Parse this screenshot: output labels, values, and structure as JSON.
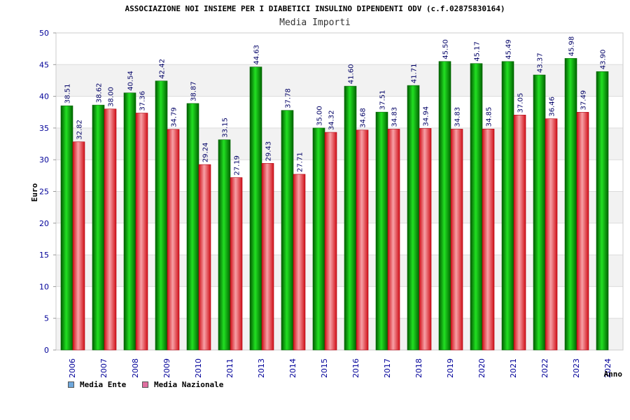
{
  "chart_data": {
    "type": "bar",
    "title": "ASSOCIAZIONE NOI INSIEME PER I DIABETICI INSULINO DIPENDENTI ODV (c.f.02875830164)",
    "subtitle": "Media Importi",
    "xlabel": "Anno",
    "ylabel": "Euro",
    "ylim": [
      0,
      50
    ],
    "yticks": [
      0,
      5,
      10,
      15,
      20,
      25,
      30,
      35,
      40,
      45,
      50
    ],
    "grid": true,
    "legend_position": "bottom-left",
    "categories": [
      "2006",
      "2007",
      "2008",
      "2009",
      "2010",
      "2011",
      "2013",
      "2014",
      "2015",
      "2016",
      "2017",
      "2018",
      "2019",
      "2020",
      "2021",
      "2022",
      "2023",
      "2024"
    ],
    "series": [
      {
        "name": "Media Ente",
        "color": "#00b300",
        "legend_color": "#6fa8dc",
        "values": [
          38.51,
          38.62,
          40.54,
          42.42,
          38.87,
          33.15,
          44.63,
          37.78,
          35.0,
          41.6,
          37.51,
          41.71,
          45.5,
          45.17,
          45.49,
          43.37,
          45.98,
          43.9
        ],
        "labels": [
          "38.51",
          "38.62",
          "40.54",
          "42.42",
          "38.87",
          "33.15",
          "44.63",
          "37.78",
          "35.00",
          "41.60",
          "37.51",
          "41.71",
          "45.50",
          "45.17",
          "45.49",
          "43.37",
          "45.98",
          "43.90"
        ]
      },
      {
        "name": "Media Nazionale",
        "color": "#e8202a",
        "legend_color": "#e06fa0",
        "values": [
          32.82,
          38.0,
          37.36,
          34.79,
          29.24,
          27.19,
          29.43,
          27.71,
          34.32,
          34.68,
          34.83,
          34.94,
          34.83,
          34.85,
          37.05,
          36.46,
          37.49,
          null
        ],
        "labels": [
          "32.82",
          "38.00",
          "37.36",
          "34.79",
          "29.24",
          "27.19",
          "29.43",
          "27.71",
          "34.32",
          "34.68",
          "34.83",
          "34.94",
          "34.83",
          "34.85",
          "37.05",
          "36.46",
          "37.49",
          null
        ]
      }
    ]
  }
}
